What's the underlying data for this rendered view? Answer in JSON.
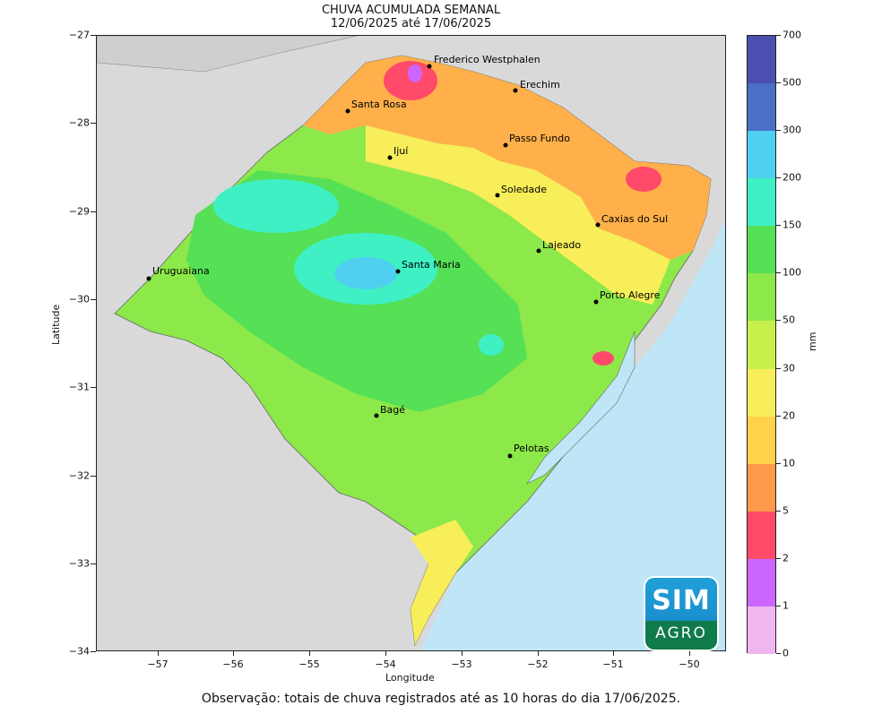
{
  "title": {
    "line1": "CHUVA ACUMULADA SEMANAL",
    "line2": "12/06/2025 até 17/06/2025"
  },
  "axes": {
    "xlabel": "Longitude",
    "ylabel": "Latitude",
    "xticks": [
      "−57",
      "−56",
      "−55",
      "−54",
      "−53",
      "−52",
      "−51",
      "−50"
    ],
    "yticks": [
      "−27",
      "−28",
      "−29",
      "−30",
      "−31",
      "−32",
      "−33",
      "−34"
    ]
  },
  "cities": [
    {
      "name": "Frederico Westphalen"
    },
    {
      "name": "Erechim"
    },
    {
      "name": "Santa Rosa"
    },
    {
      "name": "Passo Fundo"
    },
    {
      "name": "Ijuí"
    },
    {
      "name": "Soledade"
    },
    {
      "name": "Caxias do Sul"
    },
    {
      "name": "Lajeado"
    },
    {
      "name": "Santa Maria"
    },
    {
      "name": "Uruguaiana"
    },
    {
      "name": "Porto Alegre"
    },
    {
      "name": "Bagé"
    },
    {
      "name": "Pelotas"
    }
  ],
  "colorbar": {
    "unit": "mm",
    "ticks": [
      "700",
      "500",
      "300",
      "200",
      "150",
      "100",
      "50",
      "30",
      "20",
      "10",
      "5",
      "2",
      "1",
      "0"
    ],
    "colors": [
      "#4a4fb0",
      "#4a6fc4",
      "#4fd0f0",
      "#3ff0c4",
      "#55e055",
      "#8de84a",
      "#c8f04a",
      "#f7ee5a",
      "#ffd24a",
      "#ff9a4a",
      "#ff4a6a",
      "#cc66ff",
      "#f0b6f0",
      "#fdf6fd"
    ]
  },
  "logo": {
    "top": "SIM",
    "bottom": "AGRO"
  },
  "note": "Observação: totais de chuva registrados até as 10 horas do dia 17/06/2025."
}
